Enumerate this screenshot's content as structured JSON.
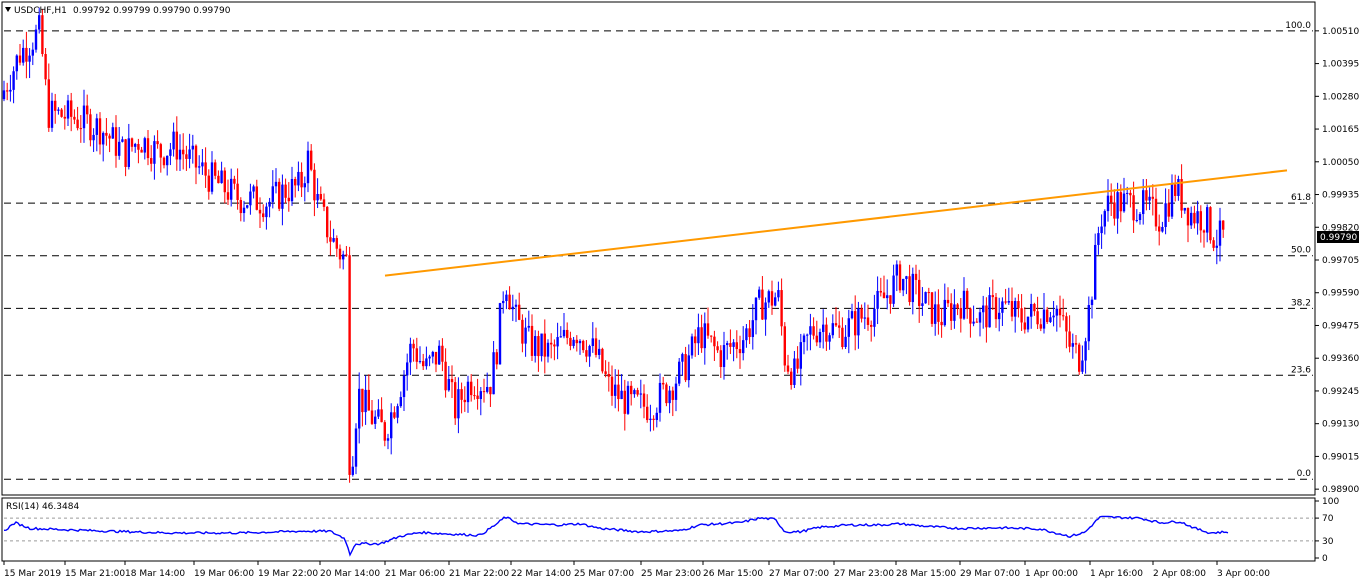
{
  "header": {
    "symbol_timeframe": "USDCHF,H1",
    "ohlc": "0.99792 0.99799 0.99790 0.99790"
  },
  "price_axis": {
    "ticks": [
      "1.00510",
      "1.00395",
      "1.00280",
      "1.00165",
      "1.00050",
      "0.99935",
      "0.99820",
      "0.99705",
      "0.99590",
      "0.99475",
      "0.99360",
      "0.99245",
      "0.99130",
      "0.99015",
      "0.98900"
    ],
    "current_price": "0.99790"
  },
  "fibonacci_levels": [
    {
      "label": "100.0",
      "price": 1.0051
    },
    {
      "label": "61.8",
      "price": 0.99905
    },
    {
      "label": "50.0",
      "price": 0.9972
    },
    {
      "label": "38.2",
      "price": 0.99535
    },
    {
      "label": "23.6",
      "price": 0.993
    },
    {
      "label": "0.0",
      "price": 0.98935
    }
  ],
  "trendline": {
    "color": "#ff9900"
  },
  "rsi": {
    "label": "RSI(14) 46.3484",
    "levels": [
      "70",
      "30"
    ],
    "ticks": [
      "100",
      "70",
      "30",
      "0"
    ]
  },
  "time_axis": {
    "labels": [
      "15 Mar 2019",
      "15 Mar 21:00",
      "18 Mar 14:00",
      "19 Mar 06:00",
      "19 Mar 22:00",
      "20 Mar 14:00",
      "21 Mar 06:00",
      "21 Mar 22:00",
      "22 Mar 14:00",
      "25 Mar 07:00",
      "25 Mar 23:00",
      "26 Mar 15:00",
      "27 Mar 07:00",
      "27 Mar 23:00",
      "28 Mar 15:00",
      "29 Mar 07:00",
      "1 Apr 00:00",
      "1 Apr 16:00",
      "2 Apr 08:00",
      "3 Apr 00:00"
    ]
  },
  "colors": {
    "bull": "#0000ff",
    "bear": "#ff0000",
    "grid": "#000000",
    "text": "#000000"
  },
  "chart_data": {
    "type": "candlestick",
    "symbol": "USDCHF",
    "timeframe": "H1",
    "path": [
      [
        0,
        1.0027
      ],
      [
        20,
        1.0043
      ],
      [
        40,
        1.0051
      ],
      [
        48,
        1.0022
      ],
      [
        70,
        1.0021
      ],
      [
        100,
        1.0017
      ],
      [
        125,
        1.0008
      ],
      [
        140,
        1.0013
      ],
      [
        160,
        1.0008
      ],
      [
        175,
        1.0011
      ],
      [
        195,
        1.0004
      ],
      [
        215,
        0.9998
      ],
      [
        240,
        0.9992
      ],
      [
        270,
        0.9991
      ],
      [
        285,
        0.9995
      ],
      [
        300,
        0.9996
      ],
      [
        308,
        1.0006
      ],
      [
        318,
        0.999
      ],
      [
        330,
        0.9979
      ],
      [
        340,
        0.9973
      ],
      [
        347,
        0.997
      ],
      [
        350,
        0.9893
      ],
      [
        358,
        0.9924
      ],
      [
        370,
        0.9916
      ],
      [
        385,
        0.991
      ],
      [
        400,
        0.9926
      ],
      [
        412,
        0.9941
      ],
      [
        425,
        0.9932
      ],
      [
        440,
        0.9938
      ],
      [
        455,
        0.9918
      ],
      [
        470,
        0.9928
      ],
      [
        490,
        0.9927
      ],
      [
        497,
        0.994
      ],
      [
        505,
        0.9965
      ],
      [
        515,
        0.995
      ],
      [
        530,
        0.9941
      ],
      [
        550,
        0.9938
      ],
      [
        575,
        0.9946
      ],
      [
        595,
        0.9938
      ],
      [
        610,
        0.9925
      ],
      [
        630,
        0.992
      ],
      [
        650,
        0.9919
      ],
      [
        670,
        0.9926
      ],
      [
        685,
        0.9933
      ],
      [
        700,
        0.9945
      ],
      [
        720,
        0.9937
      ],
      [
        745,
        0.9944
      ],
      [
        760,
        0.9955
      ],
      [
        778,
        0.9958
      ],
      [
        785,
        0.9936
      ],
      [
        795,
        0.993
      ],
      [
        810,
        0.9945
      ],
      [
        825,
        0.9948
      ],
      [
        840,
        0.9945
      ],
      [
        860,
        0.995
      ],
      [
        880,
        0.9955
      ],
      [
        900,
        0.9965
      ],
      [
        920,
        0.9957
      ],
      [
        940,
        0.995
      ],
      [
        960,
        0.9956
      ],
      [
        980,
        0.995
      ],
      [
        1000,
        0.9955
      ],
      [
        1020,
        0.995
      ],
      [
        1040,
        0.9952
      ],
      [
        1055,
        0.9955
      ],
      [
        1070,
        0.994
      ],
      [
        1080,
        0.9936
      ],
      [
        1090,
        0.9955
      ],
      [
        1100,
        0.9985
      ],
      [
        1110,
        0.9991
      ],
      [
        1140,
        0.999
      ],
      [
        1160,
        0.9985
      ],
      [
        1175,
        0.9996
      ],
      [
        1190,
        0.9987
      ],
      [
        1205,
        0.9985
      ],
      [
        1215,
        0.9978
      ],
      [
        1225,
        0.9979
      ]
    ],
    "trendline_points": [
      [
        385,
        0.9965
      ],
      [
        1287,
        1.0002
      ]
    ],
    "rsi_values": [
      [
        0,
        42
      ],
      [
        15,
        62
      ],
      [
        30,
        52
      ],
      [
        60,
        50
      ],
      [
        110,
        47
      ],
      [
        170,
        44
      ],
      [
        240,
        44
      ],
      [
        300,
        47
      ],
      [
        330,
        47
      ],
      [
        345,
        34
      ],
      [
        350,
        6
      ],
      [
        355,
        25
      ],
      [
        380,
        25
      ],
      [
        400,
        38
      ],
      [
        420,
        45
      ],
      [
        450,
        42
      ],
      [
        480,
        40
      ],
      [
        497,
        60
      ],
      [
        505,
        72
      ],
      [
        520,
        60
      ],
      [
        560,
        58
      ],
      [
        580,
        60
      ],
      [
        600,
        52
      ],
      [
        640,
        46
      ],
      [
        680,
        48
      ],
      [
        700,
        58
      ],
      [
        740,
        62
      ],
      [
        760,
        70
      ],
      [
        775,
        68
      ],
      [
        785,
        46
      ],
      [
        800,
        46
      ],
      [
        820,
        54
      ],
      [
        850,
        58
      ],
      [
        880,
        58
      ],
      [
        900,
        60
      ],
      [
        930,
        55
      ],
      [
        960,
        52
      ],
      [
        1000,
        53
      ],
      [
        1040,
        51
      ],
      [
        1070,
        38
      ],
      [
        1085,
        45
      ],
      [
        1100,
        72
      ],
      [
        1140,
        70
      ],
      [
        1160,
        62
      ],
      [
        1180,
        64
      ],
      [
        1195,
        52
      ],
      [
        1210,
        44
      ],
      [
        1228,
        46
      ]
    ]
  }
}
